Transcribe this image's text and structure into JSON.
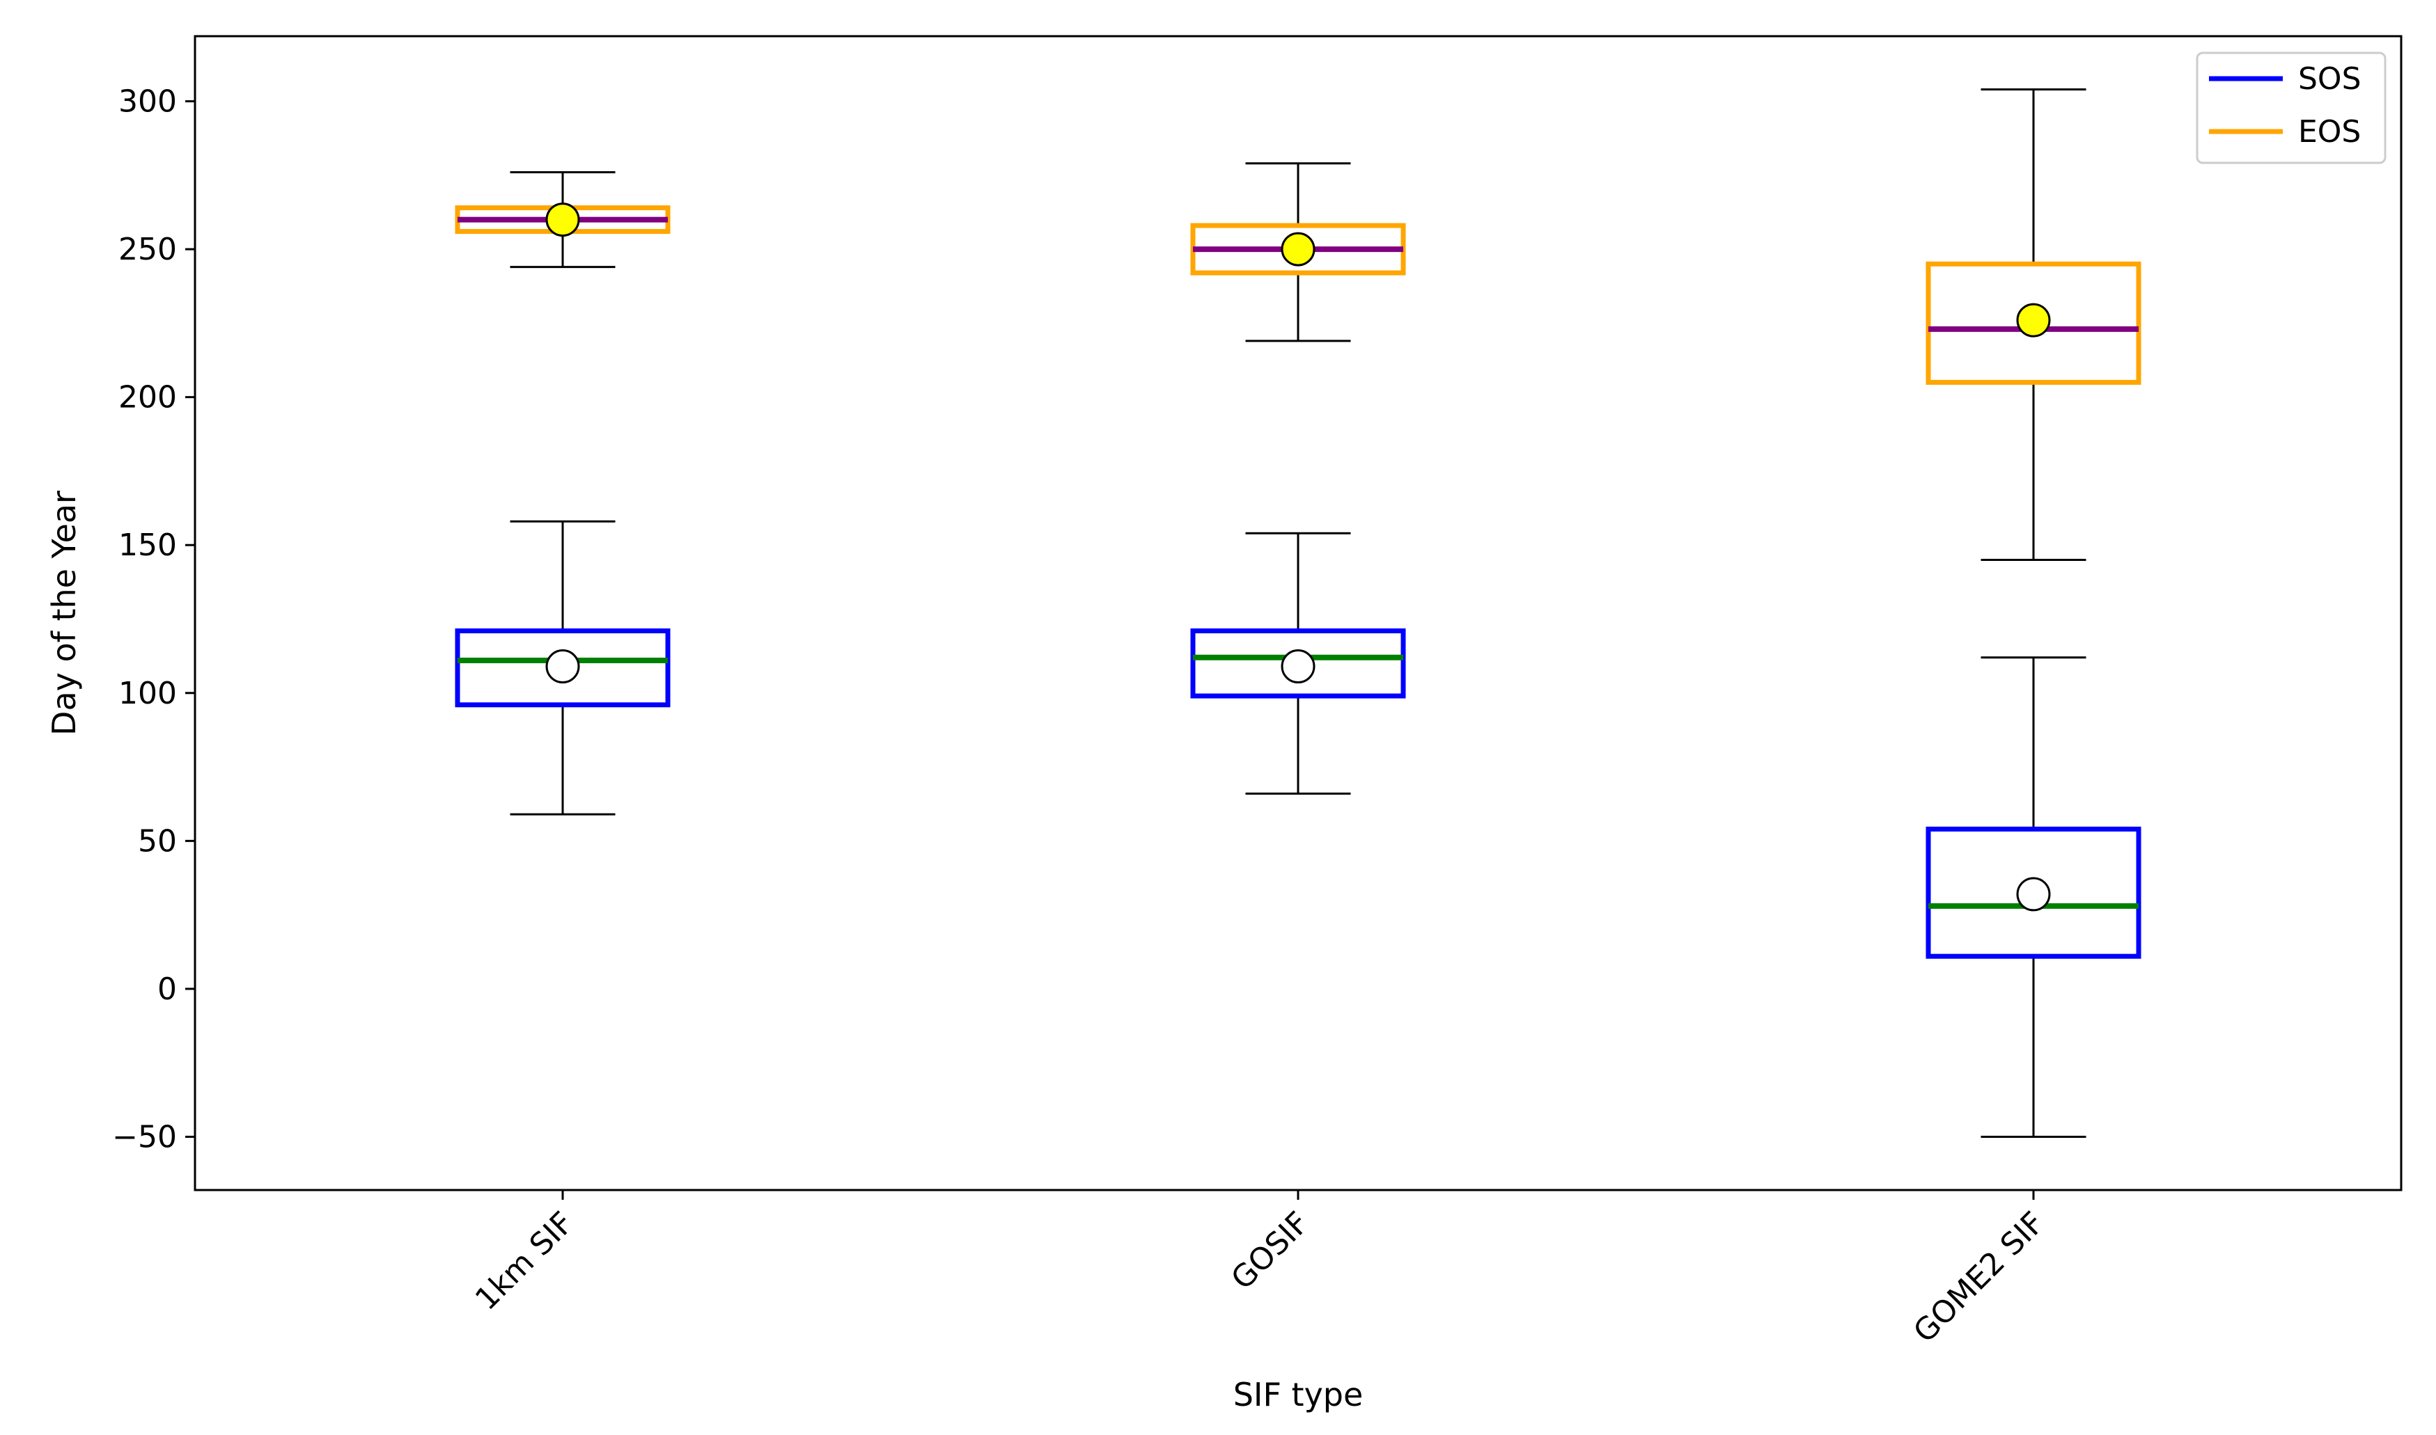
{
  "chart_data": {
    "type": "box",
    "title": "",
    "xlabel": "SIF type",
    "ylabel": "Day of the Year",
    "ylim": [
      -68,
      322
    ],
    "yticks": [
      -50,
      0,
      50,
      100,
      150,
      200,
      250,
      300
    ],
    "ytick_labels": [
      "−50",
      "0",
      "50",
      "100",
      "150",
      "200",
      "250",
      "300"
    ],
    "categories": [
      "1km SIF",
      "GOSIF",
      "GOME2 SIF"
    ],
    "legend": {
      "position": "top-right",
      "entries": [
        {
          "label": "SOS",
          "color": "#0000ff"
        },
        {
          "label": "EOS",
          "color": "#ffa500"
        }
      ]
    },
    "series": [
      {
        "name": "SOS",
        "box_color": "#0000ff",
        "median_color": "#008000",
        "mean_marker_color": "#ffffff",
        "boxes": [
          {
            "category": "1km SIF",
            "whisker_low": 59,
            "q1": 96,
            "median": 111,
            "q3": 121,
            "whisker_high": 158,
            "mean": 109
          },
          {
            "category": "GOSIF",
            "whisker_low": 66,
            "q1": 99,
            "median": 112,
            "q3": 121,
            "whisker_high": 154,
            "mean": 109
          },
          {
            "category": "GOME2 SIF",
            "whisker_low": -50,
            "q1": 11,
            "median": 28,
            "q3": 54,
            "whisker_high": 112,
            "mean": 32
          }
        ]
      },
      {
        "name": "EOS",
        "box_color": "#ffa500",
        "median_color": "#800080",
        "mean_marker_color": "#ffff00",
        "boxes": [
          {
            "category": "1km SIF",
            "whisker_low": 244,
            "q1": 256,
            "median": 260,
            "q3": 264,
            "whisker_high": 276,
            "mean": 260
          },
          {
            "category": "GOSIF",
            "whisker_low": 219,
            "q1": 242,
            "median": 250,
            "q3": 258,
            "whisker_high": 279,
            "mean": 250
          },
          {
            "category": "GOME2 SIF",
            "whisker_low": 145,
            "q1": 205,
            "median": 223,
            "q3": 245,
            "whisker_high": 304,
            "mean": 226
          }
        ]
      }
    ]
  }
}
